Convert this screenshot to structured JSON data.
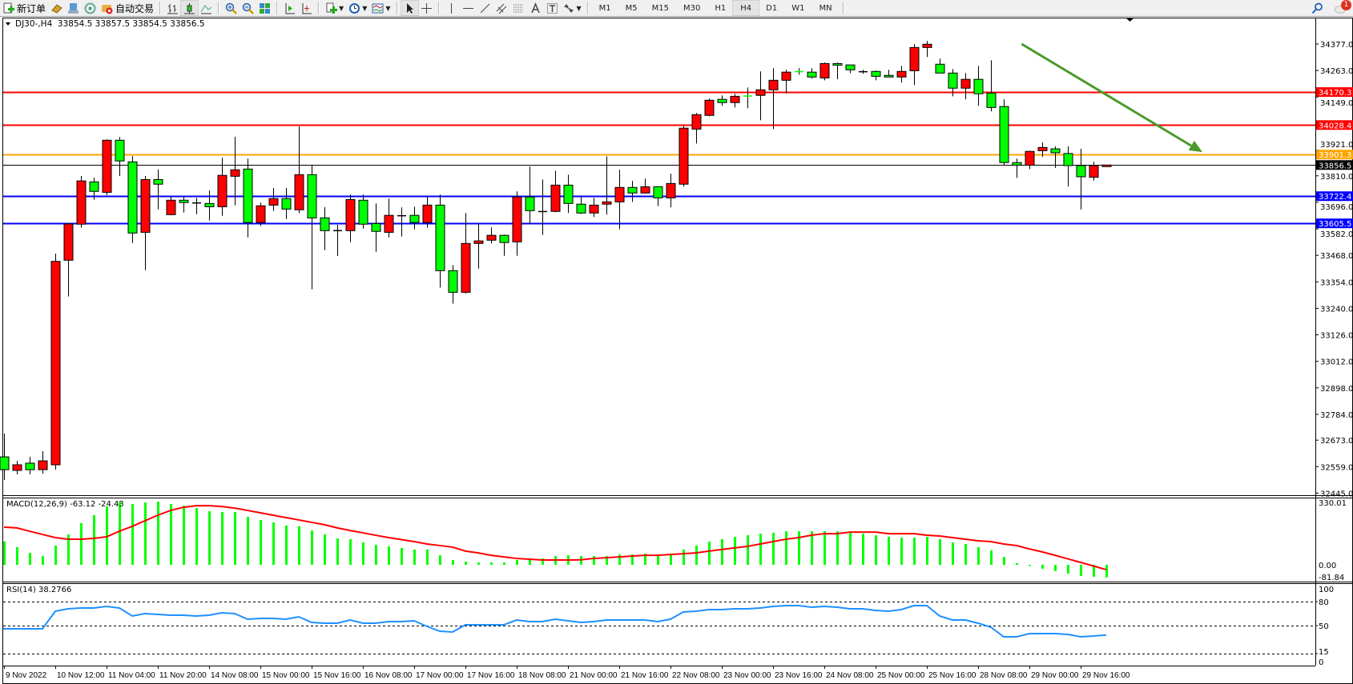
{
  "toolbar": {
    "items": [
      {
        "label": "新订单",
        "icon": "new-order-icon"
      },
      {
        "label": "",
        "icon": "history-center-icon"
      },
      {
        "label": "",
        "icon": "strategy-tester-icon"
      },
      {
        "label": "",
        "icon": "signals-icon"
      },
      {
        "label": "自动交易",
        "icon": "autotrading-icon"
      }
    ],
    "chart_tools": [
      "bar-chart-icon",
      "candlestick-chart-icon",
      "line-chart-icon",
      "zoom-in-icon",
      "zoom-out-icon",
      "tile-windows-icon",
      "auto-scroll-icon",
      "chart-shift-icon",
      "indicators-icon",
      "periods-icon",
      "templates-icon"
    ],
    "draw_tools": [
      "cursor-icon",
      "crosshair-icon",
      "vertical-line-icon",
      "horizontal-line-icon",
      "trendline-icon",
      "equidistant-channel-icon",
      "fibonacci-icon",
      "text-icon",
      "text-label-icon",
      "arrows-icon"
    ],
    "timeframes": [
      "M1",
      "M5",
      "M15",
      "M30",
      "H1",
      "H4",
      "D1",
      "W1",
      "MN"
    ],
    "active_timeframe": "H4",
    "notification_count": "1"
  },
  "chart": {
    "header": "DJ30-,H4  33854.5 33857.5 33854.5 33856.5",
    "macd_label": "MACD(12,26,9) -63.12 -24.43",
    "rsi_label": "RSI(14) 38.2766"
  },
  "colors": {
    "bull": "#ff0000",
    "bear": "#00ff00",
    "macd_hist": "#00ff00",
    "signal": "#ff0000",
    "rsi": "#1e90ff",
    "arrow": "#4a9a2a"
  },
  "chart_data": [
    {
      "type": "candlestick",
      "symbol": "DJ30-",
      "timeframe": "H4",
      "ylim": [
        32445.0,
        34435.0
      ],
      "y_ticks": [
        "34377.0",
        "34263.0",
        "34149.0",
        "33921.0",
        "33810.0",
        "33696.0",
        "33582.0",
        "33468.0",
        "33354.0",
        "33240.0",
        "33126.0",
        "33012.0",
        "32898.0",
        "32784.0",
        "32673.0",
        "32559.0",
        "32445.0"
      ],
      "x_ticks": [
        {
          "index": 0,
          "label": "9 Nov 2022"
        },
        {
          "index": 4,
          "label": "10 Nov 12:00"
        },
        {
          "index": 8,
          "label": "11 Nov 04:00"
        },
        {
          "index": 12,
          "label": "11 Nov 20:00"
        },
        {
          "index": 16,
          "label": "14 Nov 08:00"
        },
        {
          "index": 20,
          "label": "15 Nov 00:00"
        },
        {
          "index": 24,
          "label": "15 Nov 16:00"
        },
        {
          "index": 28,
          "label": "16 Nov 08:00"
        },
        {
          "index": 32,
          "label": "17 Nov 00:00"
        },
        {
          "index": 36,
          "label": "17 Nov 16:00"
        },
        {
          "index": 40,
          "label": "18 Nov 08:00"
        },
        {
          "index": 44,
          "label": "21 Nov 00:00"
        },
        {
          "index": 48,
          "label": "21 Nov 16:00"
        },
        {
          "index": 52,
          "label": "22 Nov 08:00"
        },
        {
          "index": 56,
          "label": "23 Nov 00:00"
        },
        {
          "index": 60,
          "label": "23 Nov 16:00"
        },
        {
          "index": 64,
          "label": "24 Nov 08:00"
        },
        {
          "index": 68,
          "label": "25 Nov 00:00"
        },
        {
          "index": 72,
          "label": "25 Nov 16:00"
        },
        {
          "index": 76,
          "label": "28 Nov 08:00"
        },
        {
          "index": 80,
          "label": "29 Nov 00:00"
        },
        {
          "index": 84,
          "label": "29 Nov 16:00"
        }
      ],
      "ohlc": [
        [
          32601,
          32701,
          32502,
          32546
        ],
        [
          32543,
          32584,
          32526,
          32567
        ],
        [
          32574,
          32601,
          32526,
          32546
        ],
        [
          32546,
          32626,
          32529,
          32584
        ],
        [
          32567,
          33475,
          32546,
          33442
        ],
        [
          33447,
          33603,
          33291,
          33603
        ],
        [
          33602,
          33809,
          33587,
          33788
        ],
        [
          33784,
          33802,
          33707,
          33743
        ],
        [
          33739,
          33967,
          33727,
          33963
        ],
        [
          33963,
          33977,
          33809,
          33874
        ],
        [
          33870,
          33895,
          33521,
          33564
        ],
        [
          33567,
          33809,
          33404,
          33794
        ],
        [
          33794,
          33837,
          33666,
          33774
        ],
        [
          33643,
          33720,
          33640,
          33705
        ],
        [
          33705,
          33720,
          33652,
          33695
        ],
        [
          33695,
          33715,
          33645,
          33695
        ],
        [
          33691,
          33747,
          33618,
          33677
        ],
        [
          33677,
          33888,
          33638,
          33812
        ],
        [
          33808,
          33978,
          33683,
          33836
        ],
        [
          33839,
          33884,
          33545,
          33609
        ],
        [
          33609,
          33695,
          33594,
          33681
        ],
        [
          33684,
          33758,
          33659,
          33712
        ],
        [
          33712,
          33758,
          33624,
          33667
        ],
        [
          33664,
          34022,
          33649,
          33815
        ],
        [
          33815,
          33855,
          33322,
          33629
        ],
        [
          33629,
          33675,
          33490,
          33574
        ],
        [
          33576,
          33599,
          33465,
          33576
        ],
        [
          33574,
          33729,
          33525,
          33708
        ],
        [
          33705,
          33729,
          33583,
          33602
        ],
        [
          33605,
          33691,
          33483,
          33571
        ],
        [
          33567,
          33712,
          33545,
          33640
        ],
        [
          33640,
          33674,
          33549,
          33640
        ],
        [
          33640,
          33677,
          33580,
          33609
        ],
        [
          33609,
          33722,
          33587,
          33684
        ],
        [
          33684,
          33729,
          33329,
          33402
        ],
        [
          33402,
          33426,
          33260,
          33309
        ],
        [
          33309,
          33650,
          33304,
          33519
        ],
        [
          33519,
          33605,
          33411,
          33530
        ],
        [
          33533,
          33588,
          33519,
          33554
        ],
        [
          33554,
          33557,
          33466,
          33523
        ],
        [
          33526,
          33743,
          33466,
          33719
        ],
        [
          33719,
          33850,
          33602,
          33660
        ],
        [
          33658,
          33794,
          33556,
          33658
        ],
        [
          33657,
          33832,
          33653,
          33770
        ],
        [
          33770,
          33815,
          33650,
          33691
        ],
        [
          33688,
          33722,
          33646,
          33650
        ],
        [
          33650,
          33715,
          33633,
          33684
        ],
        [
          33688,
          33894,
          33643,
          33698
        ],
        [
          33698,
          33836,
          33580,
          33760
        ],
        [
          33760,
          33788,
          33698,
          33736
        ],
        [
          33736,
          33798,
          33733,
          33763
        ],
        [
          33763,
          33763,
          33680,
          33715
        ],
        [
          33715,
          33819,
          33674,
          33777
        ],
        [
          33774,
          34025,
          33763,
          34015
        ],
        [
          34011,
          34080,
          33949,
          34073
        ],
        [
          34070,
          34142,
          34066,
          34135
        ],
        [
          34139,
          34156,
          34111,
          34125
        ],
        [
          34125,
          34163,
          34104,
          34152
        ],
        [
          34155,
          34190,
          34101,
          34153
        ],
        [
          34156,
          34259,
          34049,
          34180
        ],
        [
          34180,
          34273,
          34011,
          34221
        ],
        [
          34221,
          34266,
          34165,
          34256
        ],
        [
          34260,
          34273,
          34245,
          34258
        ],
        [
          34256,
          34273,
          34228,
          34235
        ],
        [
          34231,
          34297,
          34221,
          34293
        ],
        [
          34293,
          34297,
          34225,
          34287
        ],
        [
          34287,
          34287,
          34252,
          34266
        ],
        [
          34259.5,
          34266,
          34249,
          34259.5
        ],
        [
          34259,
          34263,
          34221,
          34238
        ],
        [
          34242,
          34266,
          34235,
          34235
        ],
        [
          34235,
          34283,
          34211,
          34259
        ],
        [
          34262,
          34376,
          34200,
          34362
        ],
        [
          34362,
          34390,
          34321,
          34376
        ],
        [
          34290,
          34314,
          34252,
          34252
        ],
        [
          34252,
          34269,
          34152,
          34187
        ],
        [
          34187,
          34252,
          34139,
          34225
        ],
        [
          34225,
          34283,
          34111,
          34163
        ],
        [
          34166,
          34307,
          34087,
          34104
        ],
        [
          34108,
          34139,
          33856,
          33867
        ],
        [
          33867,
          33884,
          33801,
          33856
        ],
        [
          33856,
          33918,
          33839,
          33915
        ],
        [
          33918,
          33954,
          33891,
          33932
        ],
        [
          33926,
          33937,
          33844,
          33909
        ],
        [
          33906,
          33937,
          33764,
          33854
        ],
        [
          33854,
          33926,
          33665,
          33806
        ],
        [
          33804,
          33871,
          33789,
          33854
        ],
        [
          33854.5,
          33857.5,
          33854.5,
          33856.5
        ]
      ],
      "levels": [
        {
          "value": "34170.3",
          "color": "#ff0000",
          "text_color": "#ffffff"
        },
        {
          "value": "34028.4",
          "color": "#ff0000",
          "text_color": "#ffffff"
        },
        {
          "value": "33901.3",
          "color": "#ffa500",
          "text_color": "#ffffff"
        },
        {
          "value": "33856.5",
          "color": "#000000",
          "text_color": "#ffffff"
        },
        {
          "value": "33722.4",
          "color": "#0000ff",
          "text_color": "#ffffff"
        },
        {
          "value": "33605.5",
          "color": "#0000ff",
          "text_color": "#ffffff"
        }
      ],
      "annotation": {
        "type": "arrow",
        "direction": "down-right",
        "from": {
          "index": 79.4,
          "price": 34377
        },
        "to": {
          "index": 93.5,
          "price": 33912
        }
      }
    },
    {
      "type": "bar+line",
      "name": "MACD(12,26,9)",
      "ylim": [
        -81.84,
        330.01
      ],
      "y_ticks": [
        "330.01",
        "0.00",
        "-81.84"
      ],
      "histogram": [
        118,
        89,
        60,
        44,
        97,
        153,
        210,
        250,
        294,
        318,
        306,
        314,
        318,
        306,
        298,
        286,
        270,
        266,
        266,
        242,
        226,
        214,
        198,
        194,
        173,
        153,
        133,
        129,
        113,
        101,
        93,
        85,
        77,
        77,
        48,
        24,
        16,
        12,
        12,
        12,
        24,
        24,
        32,
        44,
        48,
        44,
        44,
        44,
        52,
        52,
        56,
        44,
        56,
        77,
        97,
        117,
        129,
        141,
        149,
        157,
        161,
        169,
        169,
        169,
        169,
        169,
        165,
        157,
        149,
        141,
        137,
        137,
        141,
        129,
        113,
        105,
        89,
        73,
        40,
        8,
        -6,
        -20,
        -32,
        -44,
        -56,
        -60,
        -63.12
      ],
      "signal": [
        190,
        186,
        169,
        153,
        137,
        129,
        129,
        133,
        141,
        169,
        194,
        222,
        250,
        274,
        290,
        298,
        298,
        294,
        286,
        274,
        262,
        250,
        238,
        226,
        214,
        202,
        186,
        173,
        161,
        149,
        137,
        127,
        117,
        105,
        97,
        89,
        69,
        60,
        48,
        40,
        32,
        28,
        24,
        24,
        24,
        25,
        32,
        36,
        40,
        44,
        48,
        48,
        52,
        56,
        60,
        69,
        77,
        85,
        93,
        105,
        117,
        129,
        137,
        149,
        157,
        157,
        165,
        165,
        165,
        157,
        157,
        157,
        149,
        145,
        137,
        129,
        121,
        117,
        105,
        97,
        80,
        65,
        48,
        30,
        12,
        -6,
        -24.43
      ]
    },
    {
      "type": "line",
      "name": "RSI(14)",
      "ylim": [
        0,
        100
      ],
      "y_ticks": [
        "100",
        "80",
        "50",
        "15",
        "0"
      ],
      "levels": [
        80,
        50,
        15
      ],
      "values": [
        46,
        46,
        46,
        46,
        68,
        71,
        72,
        72,
        74,
        72,
        62,
        65,
        64,
        63,
        63,
        62,
        63,
        66,
        65,
        58,
        59,
        59,
        58,
        61,
        54,
        53,
        53,
        57,
        53,
        53,
        55,
        55,
        56,
        49,
        43,
        42,
        51,
        51,
        51,
        51,
        57,
        55,
        55,
        58,
        56,
        54,
        55,
        57,
        57,
        57,
        57,
        55,
        58,
        67,
        68,
        70,
        70,
        71,
        71,
        72,
        74,
        75,
        75,
        73,
        74,
        73,
        71,
        71,
        69,
        68,
        70,
        75,
        75,
        62,
        57,
        57,
        53,
        48,
        36,
        36,
        40,
        40,
        40,
        39,
        36,
        37,
        38.2766
      ]
    }
  ]
}
